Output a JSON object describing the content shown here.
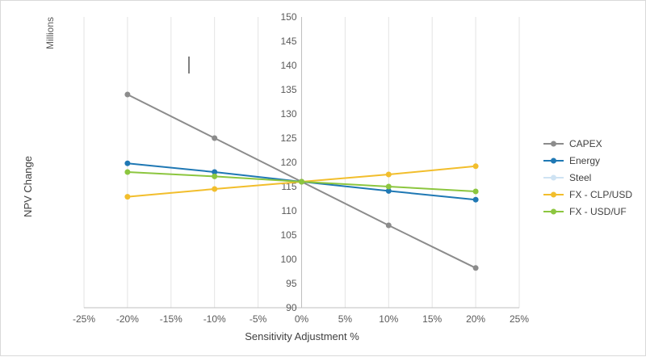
{
  "chart_data": {
    "type": "line",
    "title": "",
    "xlabel": "Sensitivity Adjustment %",
    "ylabel": "NPV Change",
    "yunit_label": "Millions",
    "xlim": [
      -25,
      25
    ],
    "ylim": [
      90,
      150
    ],
    "x_ticks": [
      -25,
      -20,
      -15,
      -10,
      -5,
      0,
      5,
      10,
      15,
      20,
      25
    ],
    "x_tick_labels": [
      "-25%",
      "-20%",
      "-15%",
      "-10%",
      "-5%",
      "0%",
      "5%",
      "10%",
      "15%",
      "20%",
      "25%"
    ],
    "y_ticks": [
      90,
      95,
      100,
      105,
      110,
      115,
      120,
      125,
      130,
      135,
      140,
      145,
      150
    ],
    "x": [
      -20,
      -10,
      0,
      10,
      20
    ],
    "series": [
      {
        "name": "CAPEX",
        "color": "#8c8c8c",
        "values": [
          134,
          125,
          116,
          107,
          98.2
        ]
      },
      {
        "name": "Energy",
        "color": "#1f78b4",
        "values": [
          119.8,
          118,
          116,
          114.1,
          112.3
        ]
      },
      {
        "name": "Steel",
        "color": "#cfe3f3",
        "values": [
          null,
          null,
          null,
          null,
          null
        ]
      },
      {
        "name": "FX - CLP/USD",
        "color": "#f2be2c",
        "values": [
          112.9,
          114.5,
          116,
          117.5,
          119.2
        ]
      },
      {
        "name": "FX - USD/UF",
        "color": "#8cc63f",
        "values": [
          118,
          117.1,
          116,
          115,
          114
        ]
      }
    ],
    "legend_position": "right",
    "grid": "vertical"
  }
}
